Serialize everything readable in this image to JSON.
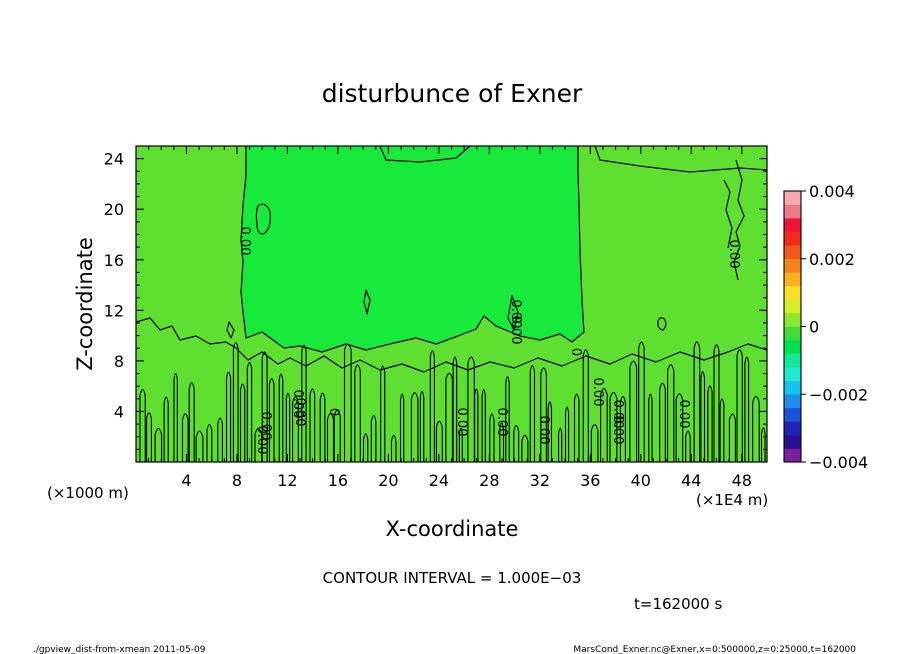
{
  "chart_data": {
    "type": "heatmap",
    "title": "disturbunce of Exner",
    "xlabel": "X-coordinate",
    "ylabel": "Z-coordinate",
    "x_unit_left": "(×1000 m)",
    "x_unit_right": "(×1E4 m)",
    "xlim": [
      0,
      50
    ],
    "ylim": [
      0,
      25
    ],
    "x_ticks": [
      "4",
      "8",
      "12",
      "16",
      "20",
      "24",
      "28",
      "32",
      "36",
      "40",
      "44",
      "48"
    ],
    "y_ticks": [
      "4",
      "8",
      "12",
      "16",
      "20",
      "24"
    ],
    "colorbar": {
      "range": [
        -0.004,
        0.004
      ],
      "tick_labels": [
        "0.004",
        "0.002",
        "0",
        "−0.002",
        "−0.004"
      ],
      "colors": [
        "#7b1f9e",
        "#2a0f8f",
        "#1f24b8",
        "#1d52d8",
        "#1e8fe8",
        "#18c2ee",
        "#1eead0",
        "#10e89a",
        "#00e04a",
        "#40dd3a",
        "#8de830",
        "#d8ee2a",
        "#f8e028",
        "#f8b020",
        "#f58418",
        "#f05a18",
        "#ee2a1a",
        "#ee1438",
        "#f07a84",
        "#f8a8b0"
      ]
    },
    "contour_labels": [
      "0.00",
      "0.00",
      "0.00",
      "0",
      "0",
      "0.00",
      "0.00",
      "0.00",
      "0.00",
      "0.00",
      "0.00",
      "0.00",
      "0.00",
      "0.00",
      "0.00",
      "0.00",
      "0.00"
    ],
    "field_color": "#5fe030",
    "center_color": "#18ea3c"
  },
  "contour_interval_text": "CONTOUR INTERVAL = 1.000E−03",
  "time_text": "t=162000 s",
  "footer_left": "./gpview_dist-from-xmean  2011-05-09",
  "footer_right": "MarsCond_Exner.nc@Exner,x=0:500000,z=0:25000,t=162000"
}
